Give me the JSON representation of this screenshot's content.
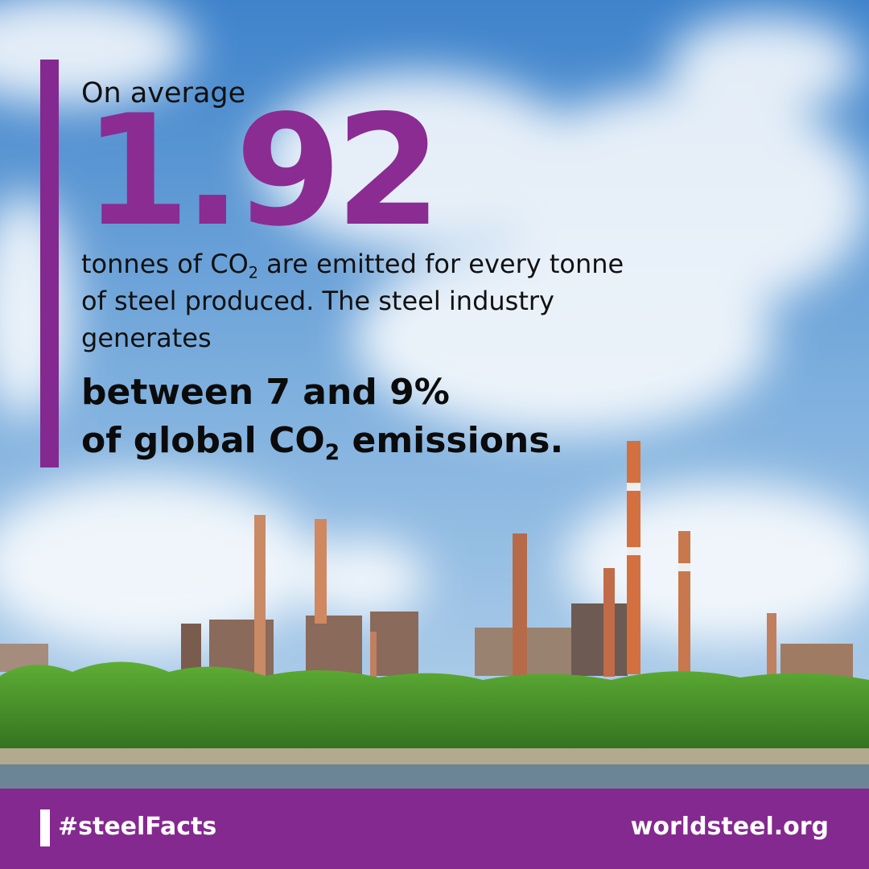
{
  "headline": {
    "intro": "On average",
    "figure": "1.92",
    "body_part1": "tonnes of CO",
    "body_sub": "2",
    "body_part2": " are emitted for every tonne of steel produced. The steel industry generates",
    "strong_line1": "between 7 and 9%",
    "strong_part1": "of global CO",
    "strong_sub": "2",
    "strong_part2": " emissions."
  },
  "footer": {
    "hashtag": "#steelFacts",
    "website": "worldsteel.org"
  },
  "colors": {
    "brand_purple": "#84298f",
    "figure_purple": "#8a2c92"
  }
}
